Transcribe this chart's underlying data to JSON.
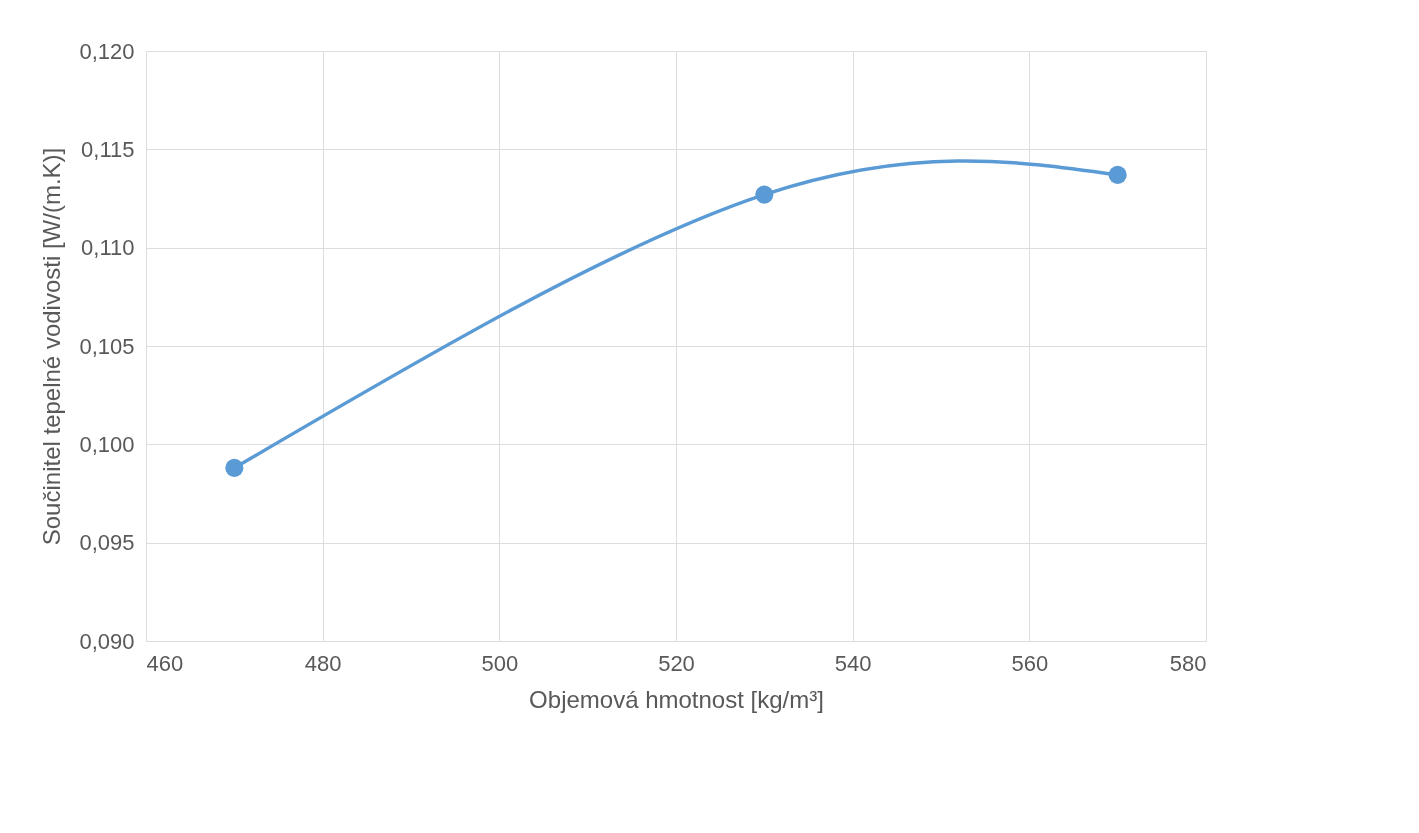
{
  "chart_data": {
    "type": "line",
    "xlabel": "Objemová hmotnost [kg/m³]",
    "ylabel": "Součinitel tepelné vodivosti [W/(m.K)]",
    "x": [
      470,
      530,
      570
    ],
    "series": [
      {
        "color": "#5b9bd5",
        "values": [
          0.0988,
          0.1127,
          0.1137
        ]
      }
    ],
    "xlim": [
      460,
      580
    ],
    "xticks": [
      460,
      480,
      500,
      520,
      540,
      560,
      580
    ],
    "ylim": [
      0.09,
      0.12
    ],
    "yticks": [
      {
        "value": 0.09,
        "label": "0,090"
      },
      {
        "value": 0.095,
        "label": "0,095"
      },
      {
        "value": 0.1,
        "label": "0,100"
      },
      {
        "value": 0.105,
        "label": "0,105"
      },
      {
        "value": 0.11,
        "label": "0,110"
      },
      {
        "value": 0.115,
        "label": "0,115"
      },
      {
        "value": 0.12,
        "label": "0,120"
      }
    ],
    "grid": true,
    "marker": "circle",
    "line_style": "solid"
  }
}
